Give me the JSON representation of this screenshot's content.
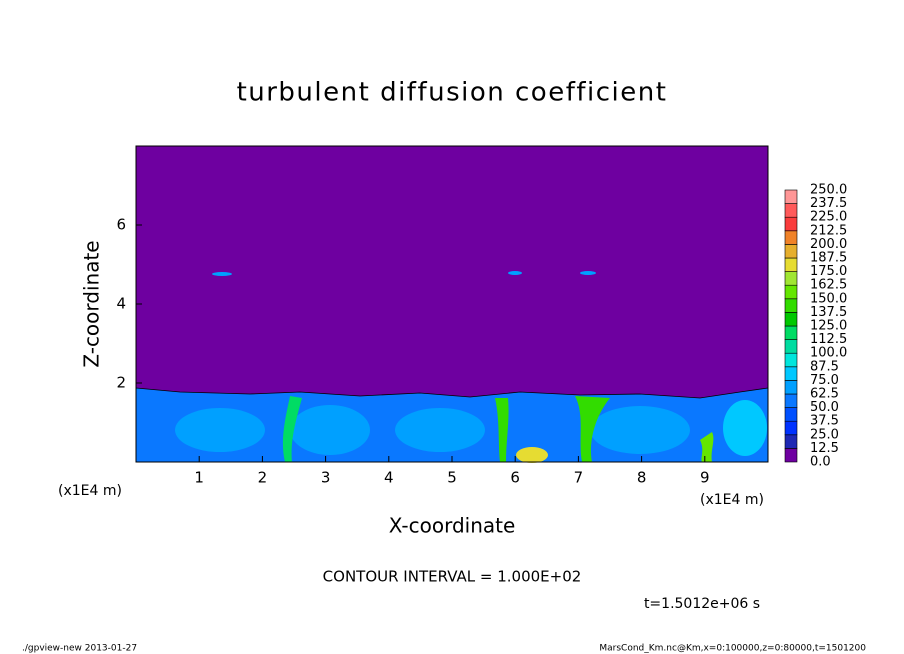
{
  "chart_data": {
    "type": "contour",
    "title": "turbulent diffusion coefficient",
    "x_label": "X-coordinate",
    "y_label": "Z-coordinate",
    "x_unit": "(x1E4 m)",
    "y_unit": "(x1E4 m)",
    "xlim": [
      0,
      10
    ],
    "xticks": [
      1,
      2,
      3,
      4,
      5,
      6,
      7,
      8,
      9
    ],
    "ylim": [
      0,
      8
    ],
    "yticks": [
      2,
      4,
      6
    ],
    "colorbar": {
      "levels": [
        {
          "value": 0,
          "label": "0.0"
        },
        {
          "value": 12.5,
          "label": "12.5"
        },
        {
          "value": 25,
          "label": "25.0"
        },
        {
          "value": 37.5,
          "label": "37.5"
        },
        {
          "value": 50,
          "label": "50.0"
        },
        {
          "value": 62.5,
          "label": "62.5"
        },
        {
          "value": 75,
          "label": "75.0"
        },
        {
          "value": 87.5,
          "label": "87.5"
        },
        {
          "value": 100,
          "label": "100.0"
        },
        {
          "value": 112.5,
          "label": "112.5"
        },
        {
          "value": 125,
          "label": "125.0"
        },
        {
          "value": 137.5,
          "label": "137.5"
        },
        {
          "value": 150,
          "label": "150.0"
        },
        {
          "value": 162.5,
          "label": "162.5"
        },
        {
          "value": 175,
          "label": "175.0"
        },
        {
          "value": 187.5,
          "label": "187.5"
        },
        {
          "value": 200,
          "label": "200.0"
        },
        {
          "value": 212.5,
          "label": "212.5"
        },
        {
          "value": 225,
          "label": "225.0"
        },
        {
          "value": 237.5,
          "label": "237.5"
        },
        {
          "value": 250,
          "label": "250.0"
        }
      ],
      "colors": [
        "#6e00a0",
        "#1e28b4",
        "#0032ff",
        "#0050ff",
        "#0a78ff",
        "#00a0ff",
        "#00c8ff",
        "#00e6dc",
        "#00dca0",
        "#00dc64",
        "#00c800",
        "#32dc00",
        "#64e600",
        "#a0e632",
        "#e6dc32",
        "#e6af2d",
        "#f08228",
        "#fa3c3c",
        "#ff5a5a",
        "#ff9696"
      ]
    },
    "annotations": [
      "CONTOUR INTERVAL = 1.000E+02",
      "t=1.5012e+06 s",
      "./gpview-new  2013-01-27",
      "MarsCond_Km.nc@Km,x=0:100000,z=0:80000,t=1501200"
    ]
  }
}
